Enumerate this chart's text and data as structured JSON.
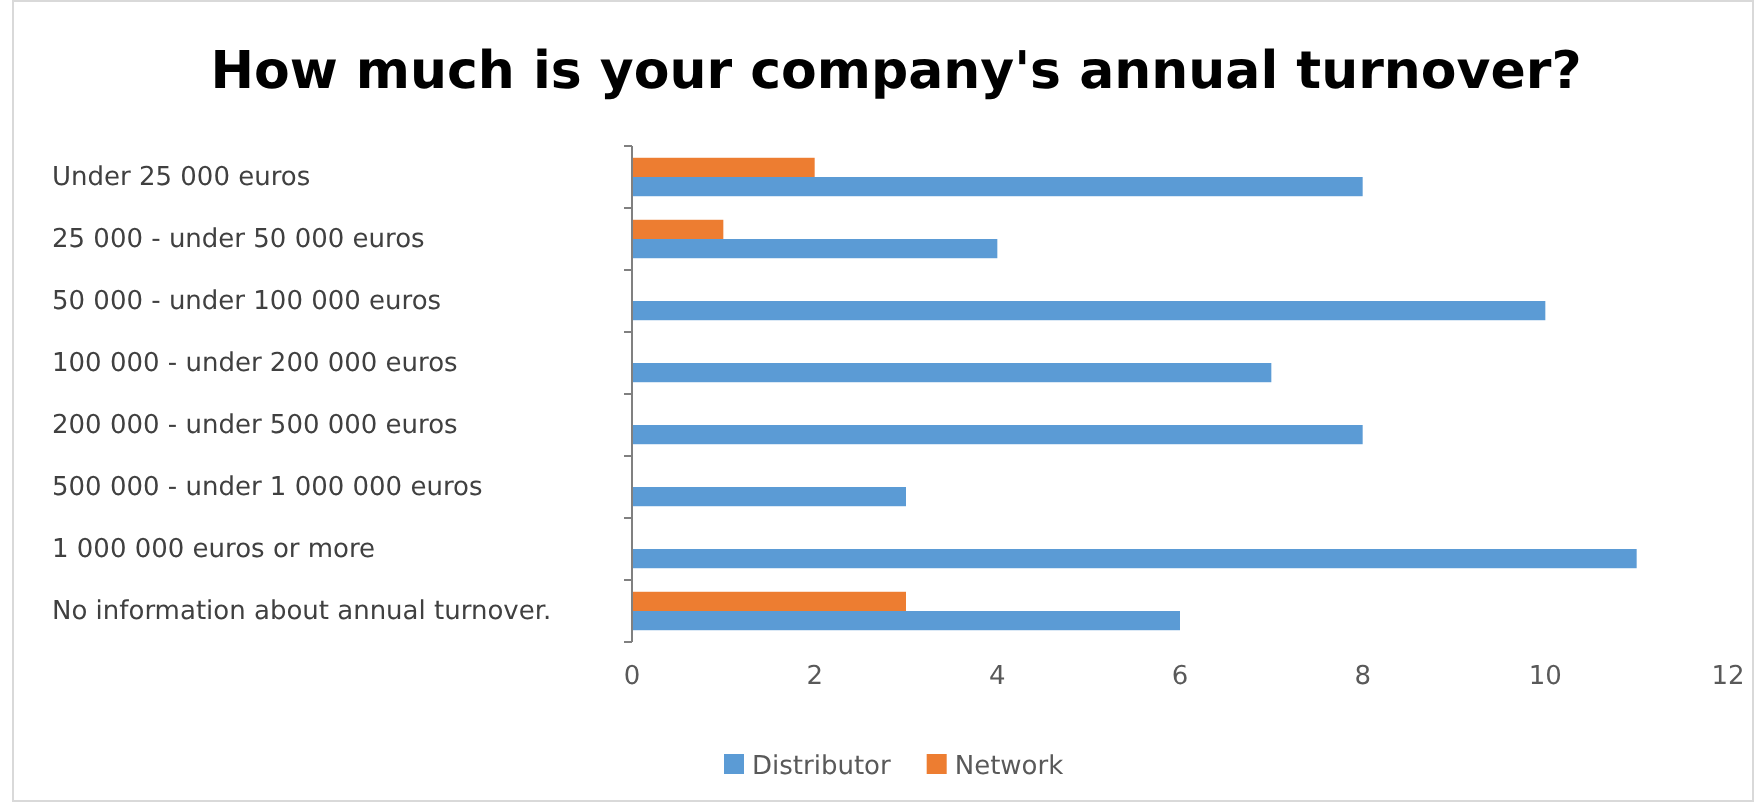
{
  "chart_data": {
    "type": "bar",
    "orientation": "horizontal",
    "title": "How much is your company's annual turnover?",
    "categories": [
      "Under 25 000 euros",
      "25 000 - under 50 000 euros",
      "50 000 - under 100 000 euros",
      "100 000 - under 200 000 euros",
      "200 000 - under 500 000 euros",
      "500 000 - under 1 000 000 euros",
      "1 000 000 euros or more",
      "No information about annual turnover."
    ],
    "series": [
      {
        "name": "Distributor",
        "color": "#5b9bd5",
        "values": [
          8,
          4,
          10,
          7,
          8,
          3,
          11,
          6
        ]
      },
      {
        "name": "Network",
        "color": "#ed7d31",
        "values": [
          2,
          1,
          0,
          0,
          0,
          0,
          0,
          3
        ]
      }
    ],
    "xlim": [
      0,
      12
    ],
    "xticks": [
      0,
      2,
      4,
      6,
      8,
      10,
      12
    ],
    "grid": false,
    "legend": "bottom"
  }
}
